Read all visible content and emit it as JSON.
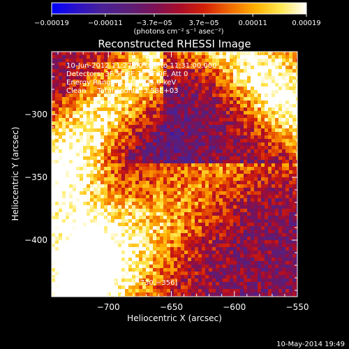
{
  "colors": {
    "background": "#000000",
    "colormap": [
      "#0000ff",
      "#2b12c8",
      "#4a2196",
      "#5a1e78",
      "#7a1258",
      "#a80c2a",
      "#d42008",
      "#f06a00",
      "#ffb000",
      "#ffe850",
      "#ffffff"
    ]
  },
  "chart_data": {
    "type": "heatmap",
    "title": "Reconstructed RHESSI Image",
    "xlabel": "Heliocentric X (arcsec)",
    "ylabel": "Heliocentric Y (arcsec)",
    "xlim": [
      -745,
      -550
    ],
    "ylim": [
      -445,
      -250
    ],
    "x_ticks": [
      -700,
      -650,
      -600,
      -550
    ],
    "y_ticks": [
      -300,
      -350,
      -400
    ],
    "x_tick_labels": [
      "−700",
      "−650",
      "−600",
      "−550"
    ],
    "y_tick_labels": [
      "−300",
      "−350",
      "−400"
    ],
    "colorbar": {
      "range": [
        -0.00019,
        0.00019
      ],
      "tick_values": [
        -0.00019,
        -0.00011,
        -3.7e-05,
        3.7e-05,
        0.00011,
        0.00019
      ],
      "tick_labels": [
        "−0.00019",
        "−0.00011",
        "−3.7e−05",
        "3.7e−05",
        "0.00011",
        "0.00019"
      ],
      "unit_label": "(photons cm⁻² s⁻¹ asec⁻²)"
    },
    "info_lines": [
      "10-Jun-2012 11:27:00.000 to 11:31:00.000",
      "Detectors: 3F 5F 6F 7F 8F 9F, Att 0",
      "Energy Range: 12.0 − 25.0 keV",
      "Clean     Total counts: 3.58E+03"
    ],
    "peak_label": "Position of Peak = [−730,−356]",
    "peak_position": [
      -730,
      -356
    ],
    "grid": false
  },
  "timestamp": "10-May-2014 19:49"
}
